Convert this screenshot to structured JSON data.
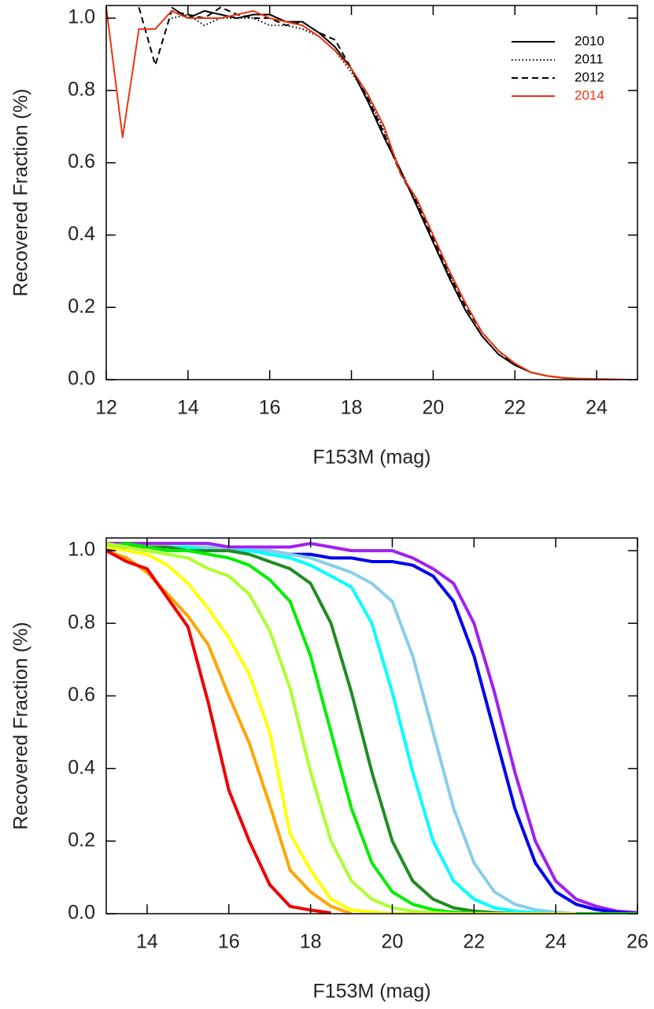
{
  "chart_data": [
    {
      "type": "line",
      "xlabel": "F153M (mag)",
      "ylabel": "Recovered Fraction (%)",
      "x": [
        12,
        12.4,
        12.8,
        13.2,
        13.6,
        14,
        14.4,
        14.8,
        15.2,
        15.6,
        16,
        16.4,
        16.8,
        17.2,
        17.6,
        18,
        18.4,
        18.8,
        19.2,
        19.6,
        20,
        20.4,
        20.8,
        21.2,
        21.6,
        22,
        22.4,
        22.8,
        23.2,
        23.6,
        24,
        24.4,
        24.8,
        25
      ],
      "series": [
        {
          "name": "2010",
          "color": "#000000",
          "line_style": "solid",
          "values": [
            null,
            null,
            null,
            null,
            1.03,
            1.0,
            1.02,
            1.01,
            1.0,
            1.01,
            1.01,
            0.99,
            0.99,
            0.96,
            0.92,
            0.86,
            0.77,
            0.67,
            0.58,
            0.48,
            0.38,
            0.28,
            0.19,
            0.12,
            0.07,
            0.04,
            0.02,
            0.01,
            0.005,
            0.002,
            0.001,
            0,
            0,
            0
          ]
        },
        {
          "name": "2011",
          "color": "#000000",
          "line_style": "dotted",
          "values": [
            null,
            null,
            null,
            null,
            1.0,
            1.01,
            0.98,
            1.0,
            1.0,
            1.0,
            0.98,
            0.98,
            0.97,
            0.95,
            0.91,
            0.85,
            0.78,
            0.69,
            0.58,
            0.49,
            0.38,
            0.29,
            0.21,
            0.13,
            0.08,
            0.045,
            0.02,
            0.01,
            0.005,
            0.002,
            0.001,
            0,
            0,
            0
          ]
        },
        {
          "name": "2012",
          "color": "#000000",
          "line_style": "dashed",
          "values": [
            null,
            null,
            1.03,
            0.87,
            1.02,
            1.01,
            1.0,
            1.03,
            1.01,
            1.0,
            1.0,
            0.98,
            0.99,
            0.96,
            0.94,
            0.86,
            0.78,
            0.68,
            0.57,
            0.49,
            0.39,
            0.29,
            0.2,
            0.13,
            0.08,
            0.04,
            0.02,
            0.01,
            0.005,
            0.002,
            0.001,
            0,
            0,
            0
          ]
        },
        {
          "name": "2014",
          "color": "#ee3311",
          "line_style": "solid",
          "values": [
            1.03,
            0.67,
            0.97,
            0.97,
            1.02,
            1.0,
            1.0,
            1.0,
            1.01,
            1.02,
            1.0,
            0.99,
            0.98,
            0.95,
            0.91,
            0.86,
            0.79,
            0.7,
            0.57,
            0.5,
            0.4,
            0.3,
            0.21,
            0.13,
            0.08,
            0.045,
            0.02,
            0.01,
            0.005,
            0.003,
            0.002,
            0.001,
            0,
            0
          ]
        }
      ],
      "xlim": [
        12,
        25
      ],
      "xticks": [
        12,
        14,
        16,
        18,
        20,
        22,
        24
      ],
      "ylim": [
        0,
        1.035
      ],
      "yticks": [
        {
          "value": 0,
          "label": "0.0"
        },
        0.2,
        0.4,
        0.6,
        0.8,
        {
          "value": 1,
          "label": "1.0"
        }
      ],
      "grid": false,
      "legend": "top-right",
      "line_width": 2
    },
    {
      "type": "line",
      "xlabel": "F153M (mag)",
      "ylabel": "Recovered Fraction (%)",
      "x": [
        13,
        13.5,
        14,
        14.5,
        15,
        15.5,
        16,
        16.5,
        17,
        17.5,
        18,
        18.5,
        19,
        19.5,
        20,
        20.5,
        21,
        21.5,
        22,
        22.5,
        23,
        23.5,
        24,
        24.5,
        25,
        25.5,
        26
      ],
      "series": [
        {
          "color": "#a020f0",
          "line_style": "solid",
          "values": [
            1.02,
            1.02,
            1.02,
            1.02,
            1.02,
            1.02,
            1.01,
            1.01,
            1.01,
            1.01,
            1.02,
            1.01,
            1.0,
            1.0,
            1.0,
            0.98,
            0.95,
            0.91,
            0.8,
            0.61,
            0.39,
            0.2,
            0.09,
            0.04,
            0.02,
            0.007,
            0.003
          ]
        },
        {
          "color": "#0000ee",
          "line_style": "solid",
          "values": [
            1.0,
            1.01,
            1.01,
            1.01,
            1.01,
            1.01,
            1.0,
            1.0,
            1.0,
            0.99,
            0.99,
            0.98,
            0.98,
            0.97,
            0.97,
            0.96,
            0.93,
            0.86,
            0.71,
            0.5,
            0.29,
            0.14,
            0.06,
            0.026,
            0.011,
            0.004,
            0
          ]
        },
        {
          "color": "#87ceeb",
          "line_style": "solid",
          "values": [
            1.01,
            1.01,
            1.01,
            1.01,
            1.01,
            1.01,
            1.0,
            1.0,
            1.0,
            0.99,
            0.98,
            0.96,
            0.94,
            0.91,
            0.86,
            0.71,
            0.5,
            0.29,
            0.14,
            0.06,
            0.026,
            0.011,
            0.004,
            0,
            null,
            null,
            null
          ]
        },
        {
          "color": "#00ffff",
          "line_style": "solid",
          "values": [
            1.02,
            1.01,
            1.01,
            1.01,
            1.01,
            1.0,
            1.0,
            1.0,
            0.99,
            0.98,
            0.96,
            0.93,
            0.9,
            0.8,
            0.61,
            0.39,
            0.2,
            0.09,
            0.04,
            0.016,
            0.007,
            0.003,
            0,
            null,
            null,
            null,
            null
          ]
        },
        {
          "color": "#228b22",
          "line_style": "solid",
          "values": [
            1.02,
            1.01,
            1.01,
            1.01,
            1.0,
            1.0,
            1.0,
            0.99,
            0.97,
            0.95,
            0.91,
            0.8,
            0.61,
            0.39,
            0.2,
            0.09,
            0.04,
            0.016,
            0.007,
            0.003,
            0,
            null,
            null,
            null,
            null,
            null,
            null
          ]
        },
        {
          "color": "#00ee00",
          "line_style": "solid",
          "values": [
            1.01,
            1.02,
            1.01,
            1.0,
            1.0,
            0.99,
            0.98,
            0.96,
            0.92,
            0.86,
            0.71,
            0.5,
            0.29,
            0.14,
            0.06,
            0.026,
            0.011,
            0.004,
            0.002,
            0,
            0,
            0,
            0,
            0,
            0,
            0,
            0
          ]
        },
        {
          "color": "#adff2f",
          "line_style": "solid",
          "values": [
            1.02,
            1.01,
            1.0,
            0.99,
            0.98,
            0.95,
            0.93,
            0.88,
            0.78,
            0.62,
            0.39,
            0.2,
            0.09,
            0.04,
            0.016,
            0.007,
            0.003,
            0,
            null,
            null,
            null,
            null,
            null,
            null,
            null,
            null,
            null
          ]
        },
        {
          "color": "#ffff00",
          "line_style": "solid",
          "values": [
            1.01,
            1.0,
            0.99,
            0.96,
            0.91,
            0.84,
            0.76,
            0.66,
            0.5,
            0.22,
            0.12,
            0.04,
            0.01,
            0.005,
            0,
            0,
            0,
            0,
            0,
            0,
            0,
            0,
            0,
            0,
            null,
            null,
            null
          ]
        },
        {
          "color": "#ffa500",
          "line_style": "solid",
          "values": [
            1.0,
            0.98,
            0.94,
            0.88,
            0.82,
            0.74,
            0.6,
            0.47,
            0.3,
            0.12,
            0.06,
            0.02,
            0,
            null,
            null,
            null,
            null,
            null,
            null,
            null,
            null,
            null,
            null,
            null,
            null,
            null,
            null
          ]
        },
        {
          "color": "#ee0000",
          "line_style": "solid",
          "values": [
            1.0,
            0.97,
            0.95,
            0.87,
            0.79,
            0.58,
            0.34,
            0.2,
            0.08,
            0.02,
            0.01,
            0.002,
            null,
            null,
            null,
            null,
            null,
            null,
            null,
            null,
            null,
            null,
            null,
            null,
            null,
            null,
            null
          ]
        }
      ],
      "xlim": [
        13,
        26
      ],
      "xticks": [
        14,
        16,
        18,
        20,
        22,
        24,
        26
      ],
      "ylim": [
        0,
        1.035
      ],
      "yticks": [
        {
          "value": 0,
          "label": "0.0"
        },
        0.2,
        0.4,
        0.6,
        0.8,
        {
          "value": 1,
          "label": "1.0"
        }
      ],
      "grid": false,
      "line_width": 4
    }
  ]
}
